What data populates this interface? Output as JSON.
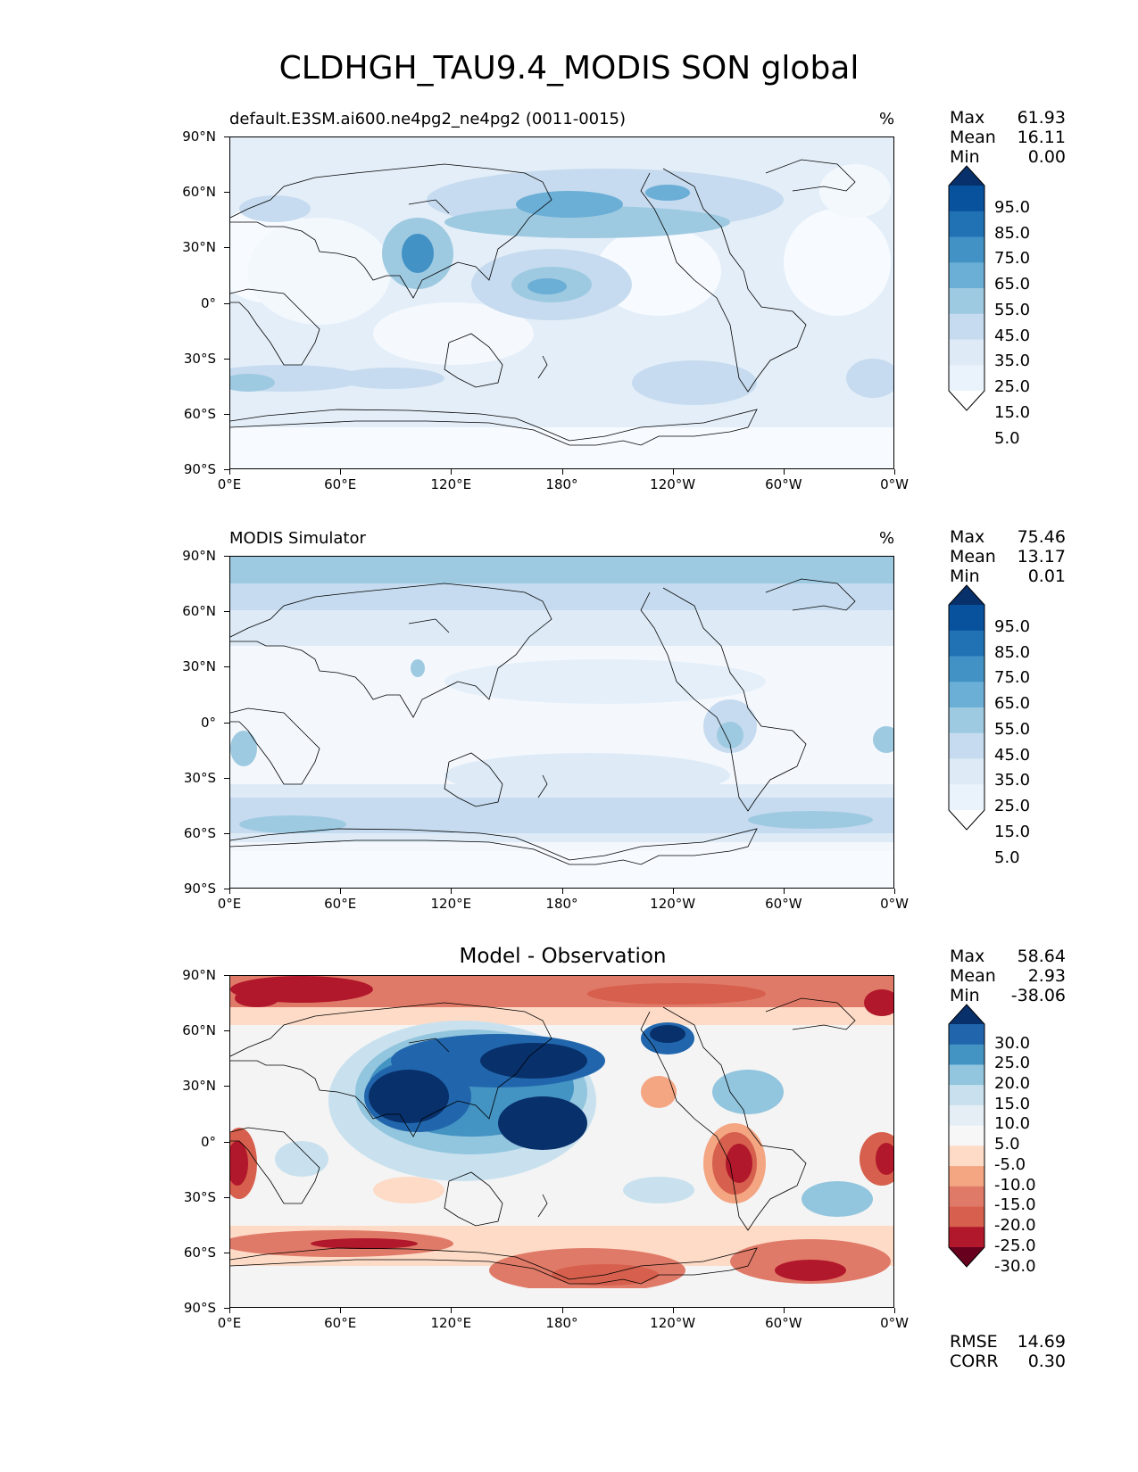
{
  "title": "CLDHGH_TAU9.4_MODIS SON global",
  "axes": {
    "lat_ticks": [
      "90°N",
      "60°N",
      "30°N",
      "0°",
      "30°S",
      "60°S",
      "90°S"
    ],
    "lon_ticks": [
      "0°E",
      "60°E",
      "120°E",
      "180°",
      "120°W",
      "60°W",
      "0°W"
    ]
  },
  "panels": [
    {
      "id": "test",
      "title": "default.E3SM.ai600.ne4pg2_ne4pg2 (0011-0015)",
      "units": "%",
      "stats": {
        "max_label": "Max",
        "max": "61.93",
        "mean_label": "Mean",
        "mean": "16.11",
        "min_label": "Min",
        "min": "0.00"
      },
      "colorbar": {
        "levels": [
          "95.0",
          "85.0",
          "75.0",
          "65.0",
          "55.0",
          "45.0",
          "35.0",
          "25.0",
          "15.0",
          "5.0"
        ],
        "colors": [
          "#08306b",
          "#08519c",
          "#2171b5",
          "#4292c6",
          "#6baed6",
          "#9ecae1",
          "#c6dbef",
          "#deebf7",
          "#eaf3fb",
          "#ffffff"
        ]
      }
    },
    {
      "id": "reference",
      "title": "MODIS Simulator",
      "units": "%",
      "stats": {
        "max_label": "Max",
        "max": "75.46",
        "mean_label": "Mean",
        "mean": "13.17",
        "min_label": "Min",
        "min": "0.01"
      },
      "colorbar": {
        "levels": [
          "95.0",
          "85.0",
          "75.0",
          "65.0",
          "55.0",
          "45.0",
          "35.0",
          "25.0",
          "15.0",
          "5.0"
        ],
        "colors": [
          "#08306b",
          "#08519c",
          "#2171b5",
          "#4292c6",
          "#6baed6",
          "#9ecae1",
          "#c6dbef",
          "#deebf7",
          "#eaf3fb",
          "#ffffff"
        ]
      }
    },
    {
      "id": "difference",
      "title": "Model - Observation",
      "units": "",
      "stats": {
        "max_label": "Max",
        "max": "58.64",
        "mean_label": "Mean",
        "mean": "2.93",
        "min_label": "Min",
        "min": "-38.06"
      },
      "colorbar": {
        "levels": [
          "30.0",
          "25.0",
          "20.0",
          "15.0",
          "10.0",
          "5.0",
          "-5.0",
          "-10.0",
          "-15.0",
          "-20.0",
          "-25.0",
          "-30.0"
        ],
        "colors": [
          "#08306b",
          "#2166ac",
          "#4393c3",
          "#92c5de",
          "#c9e1ee",
          "#e4eef4",
          "#f7f7f7",
          "#fddbc7",
          "#f4a582",
          "#e07a68",
          "#d6604d",
          "#b2182b",
          "#67001f"
        ]
      },
      "metrics": {
        "rmse_label": "RMSE",
        "rmse": "14.69",
        "corr_label": "CORR",
        "corr": "0.30"
      }
    }
  ],
  "colors": {
    "test_base": "#e3eef8",
    "reference_base": "#f1f6fc",
    "difference_base": "#f4f4f4",
    "coastline": "#000000"
  }
}
